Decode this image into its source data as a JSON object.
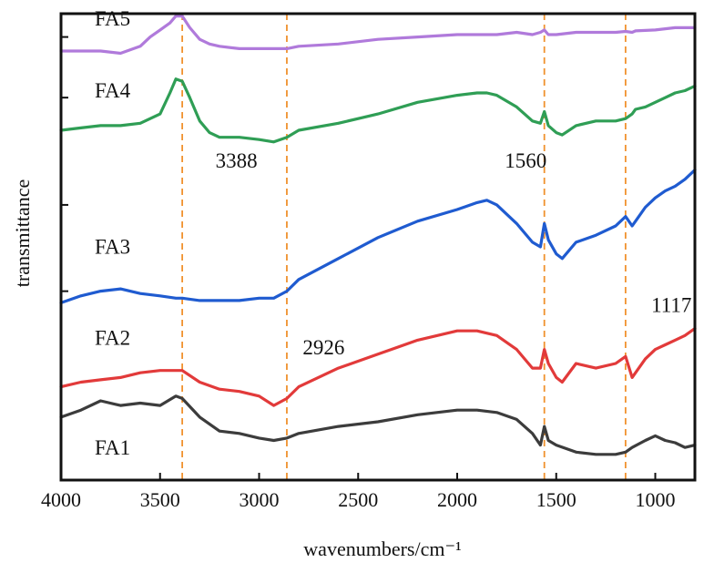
{
  "chart_data": {
    "type": "line",
    "title": "",
    "xlabel": "wavenumbers/cm⁻¹",
    "ylabel": "transmittance",
    "xlim": [
      4000,
      800
    ],
    "x_reversed": true,
    "xticks": [
      4000,
      3500,
      3000,
      2500,
      2000,
      1500,
      1000
    ],
    "xtick_labels": [
      "4000",
      "3500",
      "3000",
      "2500",
      "2000",
      "1500",
      "1000"
    ],
    "ylim": [
      0,
      10
    ],
    "y_ticks_unlabeled": [
      4.05,
      5.9,
      8.2,
      9.5
    ],
    "grid": false,
    "legend": "none",
    "reference_lines": {
      "color": "#F0922E",
      "x": [
        3388,
        2860,
        1560,
        1150
      ]
    },
    "annotations": [
      {
        "text": "3388",
        "x": 3220,
        "y": 6.7
      },
      {
        "text": "2926",
        "x": 2780,
        "y": 2.7
      },
      {
        "text": "1560",
        "x": 1760,
        "y": 6.7
      },
      {
        "text": "1117",
        "x": 1020,
        "y": 3.6
      }
    ],
    "series": [
      {
        "name": "FA1",
        "color": "#3C3C3C",
        "label_x": 3830,
        "label_y": 0.55,
        "x": [
          4000,
          3900,
          3800,
          3700,
          3600,
          3500,
          3420,
          3388,
          3300,
          3200,
          3100,
          3000,
          2926,
          2860,
          2800,
          2600,
          2400,
          2200,
          2000,
          1900,
          1800,
          1700,
          1620,
          1580,
          1560,
          1540,
          1500,
          1400,
          1300,
          1200,
          1150,
          1117,
          1050,
          1000,
          950,
          900,
          850,
          800
        ],
        "y": [
          1.35,
          1.5,
          1.7,
          1.6,
          1.65,
          1.6,
          1.8,
          1.75,
          1.35,
          1.05,
          1.0,
          0.9,
          0.85,
          0.9,
          1.0,
          1.15,
          1.25,
          1.4,
          1.5,
          1.5,
          1.45,
          1.3,
          1.0,
          0.75,
          1.15,
          0.85,
          0.75,
          0.6,
          0.55,
          0.55,
          0.6,
          0.7,
          0.85,
          0.95,
          0.85,
          0.8,
          0.7,
          0.75
        ]
      },
      {
        "name": "FA2",
        "color": "#E23A3A",
        "label_x": 3830,
        "label_y": 2.9,
        "x": [
          4000,
          3900,
          3800,
          3700,
          3600,
          3500,
          3420,
          3388,
          3300,
          3200,
          3100,
          3000,
          2926,
          2860,
          2800,
          2600,
          2400,
          2200,
          2000,
          1900,
          1800,
          1700,
          1620,
          1580,
          1560,
          1540,
          1500,
          1470,
          1400,
          1300,
          1200,
          1150,
          1117,
          1100,
          1050,
          1000,
          950,
          900,
          850,
          800
        ],
        "y": [
          2.0,
          2.1,
          2.15,
          2.2,
          2.3,
          2.35,
          2.35,
          2.35,
          2.1,
          1.95,
          1.9,
          1.8,
          1.6,
          1.75,
          2.0,
          2.4,
          2.7,
          3.0,
          3.2,
          3.2,
          3.1,
          2.8,
          2.4,
          2.4,
          2.8,
          2.5,
          2.2,
          2.1,
          2.5,
          2.4,
          2.5,
          2.65,
          2.2,
          2.3,
          2.6,
          2.8,
          2.9,
          3.0,
          3.1,
          3.25
        ]
      },
      {
        "name": "FA3",
        "color": "#1F5BD0",
        "label_x": 3830,
        "label_y": 4.85,
        "x": [
          4000,
          3900,
          3800,
          3700,
          3600,
          3500,
          3420,
          3388,
          3300,
          3200,
          3100,
          3000,
          2926,
          2860,
          2800,
          2600,
          2400,
          2200,
          2000,
          1900,
          1850,
          1800,
          1700,
          1620,
          1580,
          1560,
          1540,
          1500,
          1470,
          1400,
          1300,
          1200,
          1150,
          1117,
          1100,
          1050,
          1000,
          950,
          900,
          850,
          800
        ],
        "y": [
          3.8,
          3.95,
          4.05,
          4.1,
          4.0,
          3.95,
          3.9,
          3.9,
          3.85,
          3.85,
          3.85,
          3.9,
          3.9,
          4.05,
          4.3,
          4.75,
          5.2,
          5.55,
          5.8,
          5.95,
          6.0,
          5.9,
          5.5,
          5.1,
          5.0,
          5.5,
          5.15,
          4.85,
          4.75,
          5.1,
          5.25,
          5.45,
          5.65,
          5.45,
          5.55,
          5.85,
          6.05,
          6.2,
          6.3,
          6.45,
          6.65
        ]
      },
      {
        "name": "FA4",
        "color": "#2F9E55",
        "label_x": 3830,
        "label_y": 8.2,
        "x": [
          4000,
          3900,
          3800,
          3700,
          3600,
          3500,
          3450,
          3420,
          3388,
          3350,
          3300,
          3250,
          3200,
          3100,
          3000,
          2926,
          2860,
          2800,
          2600,
          2400,
          2200,
          2000,
          1900,
          1850,
          1800,
          1700,
          1620,
          1580,
          1560,
          1540,
          1500,
          1470,
          1400,
          1300,
          1200,
          1150,
          1117,
          1100,
          1050,
          1000,
          950,
          900,
          850,
          800
        ],
        "y": [
          7.5,
          7.55,
          7.6,
          7.6,
          7.65,
          7.85,
          8.3,
          8.6,
          8.55,
          8.2,
          7.7,
          7.45,
          7.35,
          7.35,
          7.3,
          7.25,
          7.35,
          7.5,
          7.65,
          7.85,
          8.1,
          8.25,
          8.3,
          8.3,
          8.25,
          8.0,
          7.7,
          7.65,
          7.9,
          7.6,
          7.45,
          7.4,
          7.6,
          7.7,
          7.7,
          7.75,
          7.85,
          7.95,
          8.0,
          8.1,
          8.2,
          8.3,
          8.35,
          8.45
        ]
      },
      {
        "name": "FA5",
        "color": "#B07ADB",
        "label_x": 3830,
        "label_y": 9.75,
        "x": [
          4000,
          3900,
          3800,
          3700,
          3600,
          3550,
          3500,
          3450,
          3420,
          3388,
          3350,
          3300,
          3250,
          3200,
          3100,
          3000,
          2926,
          2860,
          2800,
          2600,
          2400,
          2200,
          2000,
          1900,
          1800,
          1700,
          1620,
          1580,
          1560,
          1540,
          1500,
          1400,
          1300,
          1200,
          1150,
          1117,
          1100,
          1000,
          900,
          800
        ],
        "y": [
          9.2,
          9.2,
          9.2,
          9.15,
          9.3,
          9.5,
          9.65,
          9.8,
          9.95,
          9.95,
          9.7,
          9.45,
          9.35,
          9.3,
          9.25,
          9.25,
          9.25,
          9.25,
          9.3,
          9.35,
          9.45,
          9.5,
          9.55,
          9.55,
          9.55,
          9.6,
          9.55,
          9.6,
          9.65,
          9.55,
          9.55,
          9.6,
          9.6,
          9.6,
          9.62,
          9.6,
          9.63,
          9.65,
          9.7,
          9.7
        ]
      }
    ]
  }
}
